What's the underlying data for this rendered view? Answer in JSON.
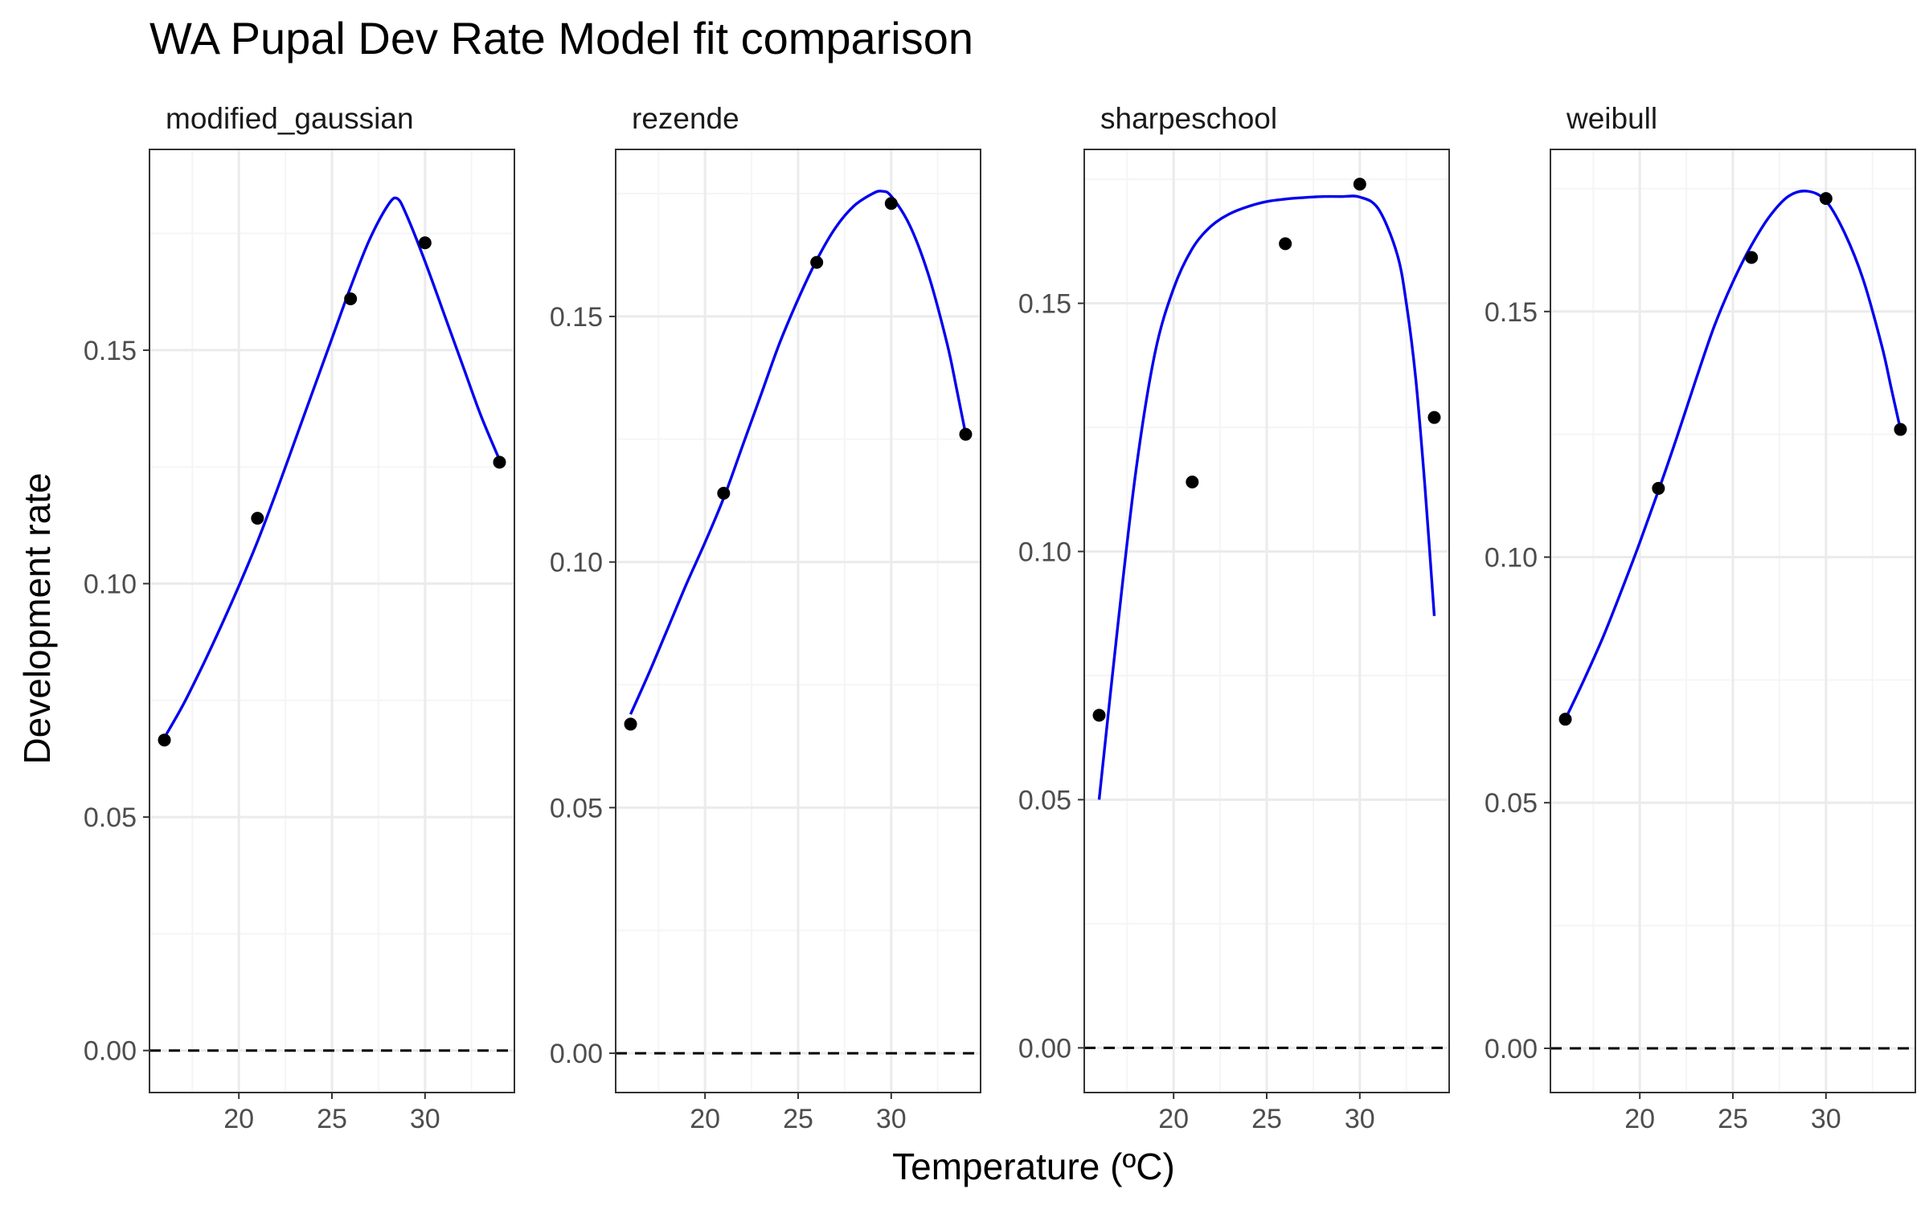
{
  "title": "WA Pupal Dev Rate Model fit comparison",
  "xlabel": "Temperature (ºC)",
  "ylabel": "Development rate",
  "colors": {
    "curve": "#0000ee",
    "points": "#000000",
    "panel_border": "#333333",
    "grid_major": "#ebebeb",
    "grid_minor": "#f5f5f5",
    "zero_line": "#000000"
  },
  "chart_data": [
    {
      "type": "line",
      "panel": "modified_gaussian",
      "x_ticks": [
        20,
        25,
        30
      ],
      "y_ticks": [
        "0.00",
        "0.05",
        "0.10",
        "0.15"
      ],
      "xlim": [
        15.2,
        34.8
      ],
      "ylim": [
        -0.009,
        0.193
      ],
      "points": {
        "x": [
          16,
          21,
          26,
          30,
          34
        ],
        "y": [
          0.0665,
          0.114,
          0.161,
          0.173,
          0.126
        ]
      },
      "fit": {
        "x": [
          16,
          17,
          18,
          19,
          20,
          21,
          22,
          23,
          24,
          25,
          26,
          27,
          28,
          28.5,
          29,
          30,
          31,
          32,
          33,
          34
        ],
        "y": [
          0.067,
          0.074,
          0.082,
          0.0905,
          0.0995,
          0.109,
          0.1195,
          0.1305,
          0.1415,
          0.1525,
          0.1635,
          0.1735,
          0.181,
          0.1825,
          0.179,
          0.169,
          0.158,
          0.147,
          0.136,
          0.1265
        ]
      }
    },
    {
      "type": "line",
      "panel": "rezende",
      "x_ticks": [
        20,
        25,
        30
      ],
      "y_ticks": [
        "0.00",
        "0.05",
        "0.10",
        "0.15"
      ],
      "xlim": [
        15.2,
        34.8
      ],
      "ylim": [
        -0.008,
        0.184
      ],
      "points": {
        "x": [
          16,
          21,
          26,
          30,
          34
        ],
        "y": [
          0.067,
          0.114,
          0.161,
          0.173,
          0.126
        ]
      },
      "fit": {
        "x": [
          16,
          17,
          18,
          19,
          20,
          21,
          22,
          23,
          24,
          25,
          26,
          27,
          28,
          29,
          29.5,
          30,
          31,
          32,
          33,
          33.5,
          34
        ],
        "y": [
          0.069,
          0.0775,
          0.0865,
          0.0955,
          0.104,
          0.113,
          0.1235,
          0.134,
          0.1445,
          0.1535,
          0.1615,
          0.168,
          0.1725,
          0.175,
          0.1755,
          0.1745,
          0.1685,
          0.1585,
          0.1445,
          0.1355,
          0.126
        ]
      }
    },
    {
      "type": "line",
      "panel": "sharpeschool",
      "x_ticks": [
        20,
        25,
        30
      ],
      "y_ticks": [
        "0.00",
        "0.05",
        "0.10",
        "0.15"
      ],
      "xlim": [
        15.2,
        34.8
      ],
      "ylim": [
        -0.009,
        0.181
      ],
      "points": {
        "x": [
          16,
          21,
          26,
          30,
          34
        ],
        "y": [
          0.067,
          0.114,
          0.162,
          0.174,
          0.127
        ]
      },
      "fit": {
        "x": [
          16,
          17,
          18,
          19,
          20,
          21,
          22,
          23,
          24,
          25,
          26,
          27,
          28,
          29,
          30,
          31,
          32,
          32.5,
          33,
          33.5,
          34
        ],
        "y": [
          0.05,
          0.085,
          0.117,
          0.14,
          0.153,
          0.161,
          0.1655,
          0.168,
          0.1695,
          0.1705,
          0.171,
          0.1713,
          0.1715,
          0.1715,
          0.1714,
          0.169,
          0.16,
          0.15,
          0.135,
          0.113,
          0.087
        ]
      }
    },
    {
      "type": "line",
      "panel": "weibull",
      "x_ticks": [
        20,
        25,
        30
      ],
      "y_ticks": [
        "0.00",
        "0.05",
        "0.10",
        "0.15"
      ],
      "xlim": [
        15.2,
        34.8
      ],
      "ylim": [
        -0.009,
        0.183
      ],
      "points": {
        "x": [
          16,
          21,
          26,
          30,
          34
        ],
        "y": [
          0.067,
          0.114,
          0.161,
          0.173,
          0.126
        ]
      },
      "fit": {
        "x": [
          16,
          17,
          18,
          19,
          20,
          21,
          22,
          23,
          24,
          25,
          26,
          27,
          28,
          29,
          30,
          31,
          32,
          33,
          33.5,
          34
        ],
        "y": [
          0.067,
          0.075,
          0.0835,
          0.093,
          0.103,
          0.1135,
          0.1245,
          0.136,
          0.147,
          0.156,
          0.1635,
          0.1695,
          0.1735,
          0.1745,
          0.1725,
          0.166,
          0.1565,
          0.143,
          0.1345,
          0.126
        ]
      }
    }
  ]
}
